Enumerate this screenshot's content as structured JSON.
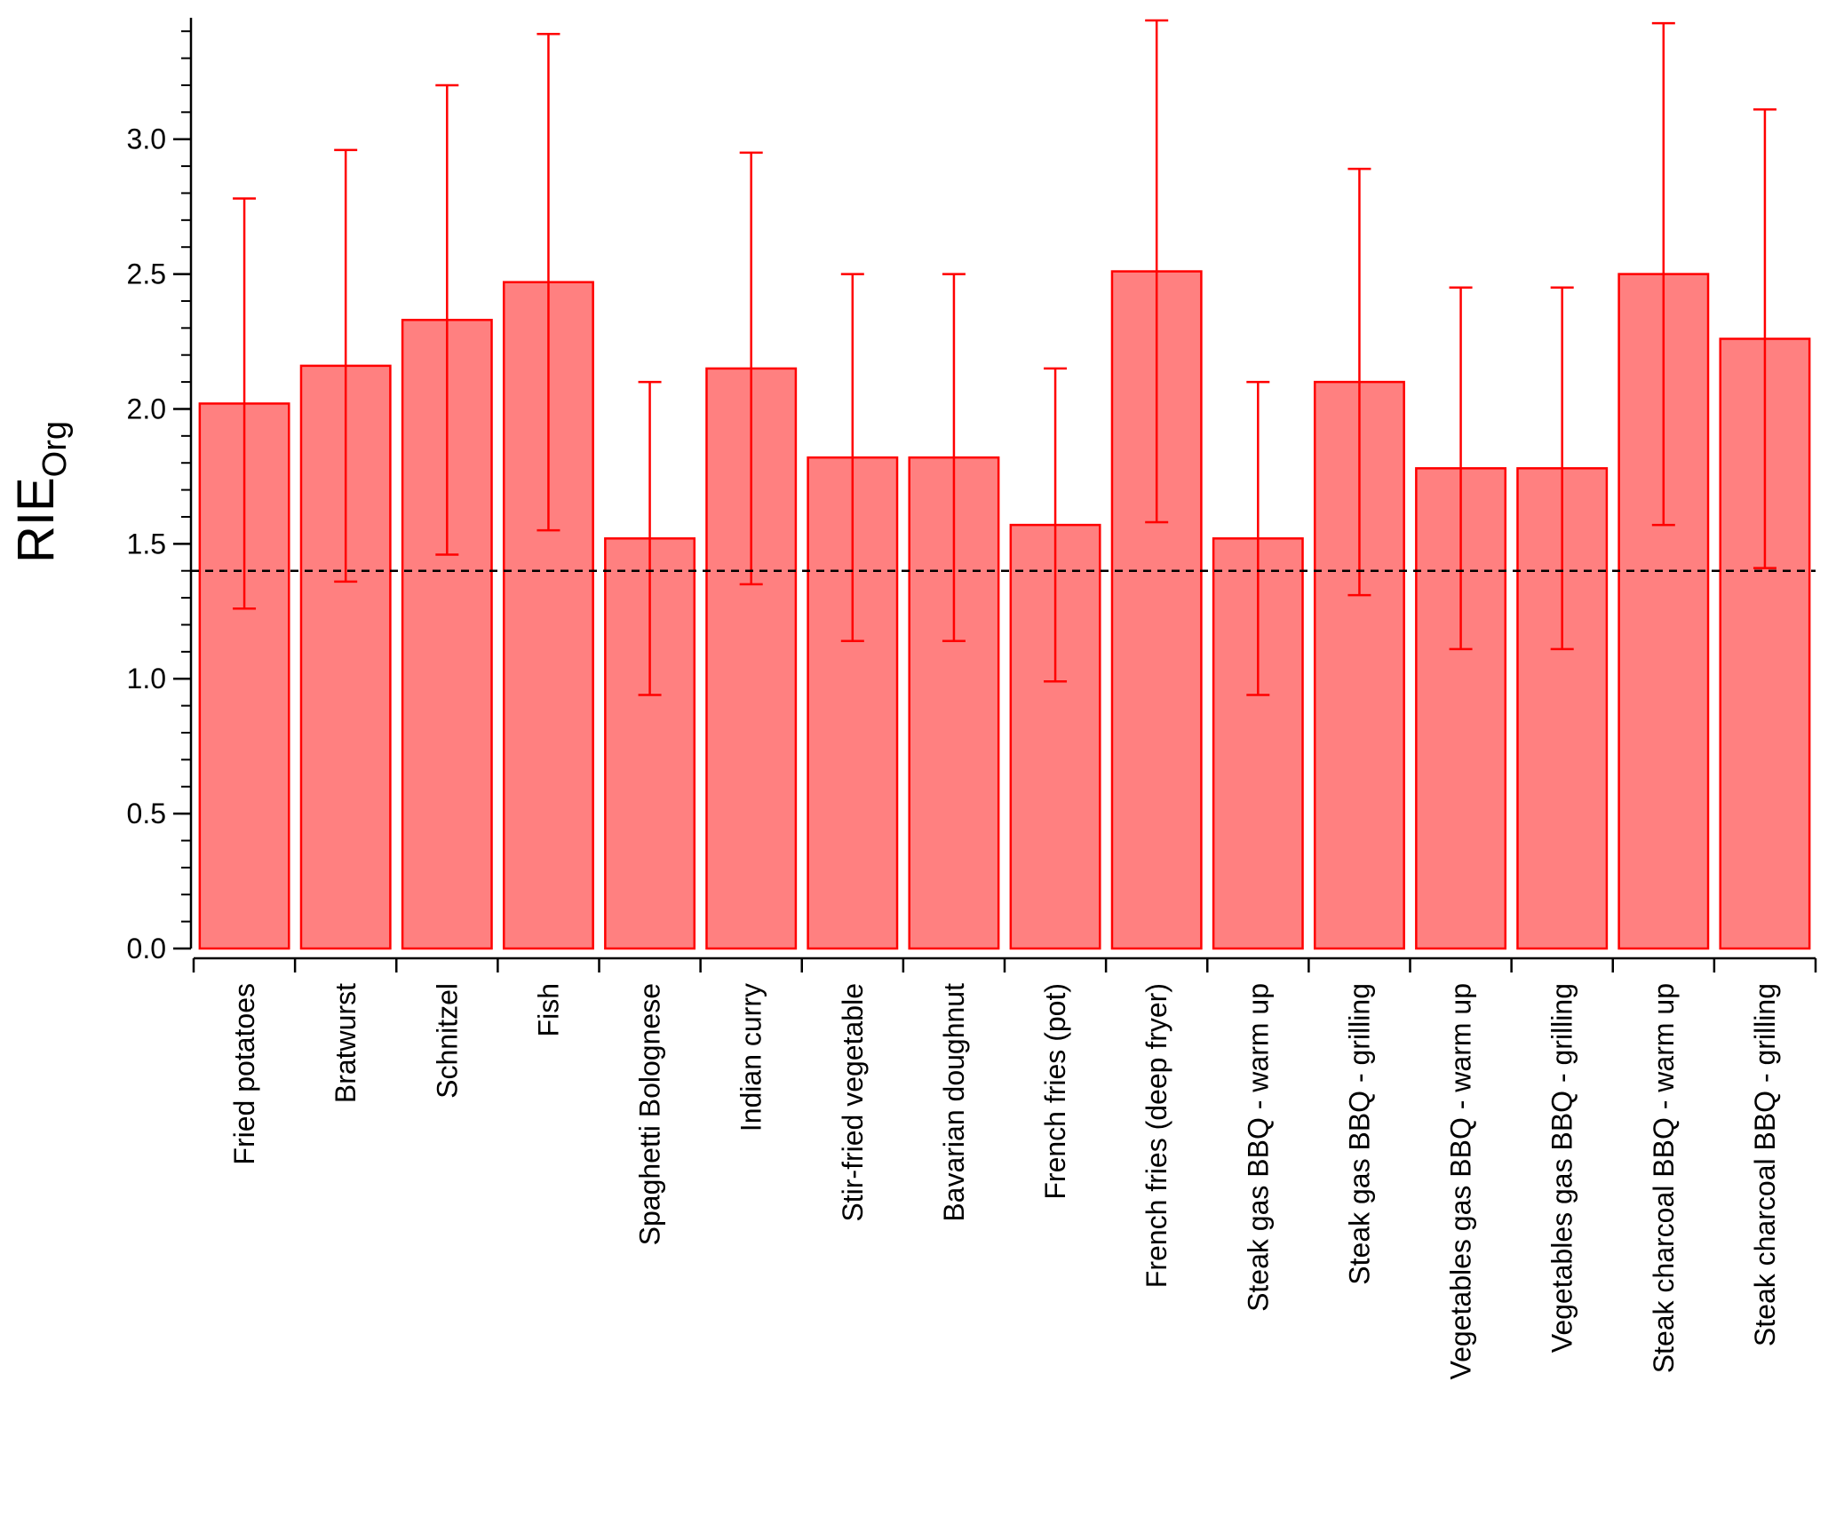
{
  "chart_data": {
    "type": "bar",
    "y_label": "RIE",
    "y_label_sub": "Org",
    "categories": [
      "Fried potatoes",
      "Bratwurst",
      "Schnitzel",
      "Fish",
      "Spaghetti Bolognese",
      "Indian curry",
      "Stir-fried vegetable",
      "Bavarian doughnut",
      "French fries (pot)",
      "French fries (deep fryer)",
      "Steak gas BBQ - warm up",
      "Steak gas BBQ - grilling",
      "Vegetables gas BBQ - warm up",
      "Vegetables gas BBQ - grilling",
      "Steak charcoal BBQ - warm up",
      "Steak charcoal BBQ - grilling"
    ],
    "values": [
      2.02,
      2.16,
      2.33,
      2.47,
      1.52,
      2.15,
      1.82,
      1.82,
      1.57,
      2.51,
      1.52,
      2.1,
      1.78,
      1.78,
      2.5,
      2.26
    ],
    "errors": [
      0.76,
      0.8,
      0.87,
      0.92,
      0.58,
      0.8,
      0.68,
      0.68,
      0.58,
      0.93,
      0.58,
      0.79,
      0.67,
      0.67,
      0.93,
      0.85
    ],
    "color": "#ff8080",
    "edge_color": "#ff0000",
    "error_color": "#ff0000",
    "reference_line": 1.4,
    "ylim": [
      0,
      3.45
    ],
    "yticks": [
      {
        "value": 0,
        "label": "0.0"
      },
      0.5,
      {
        "value": 1,
        "label": "1.0"
      },
      1.5,
      {
        "value": 2,
        "label": "2.0"
      },
      2.5,
      {
        "value": 3,
        "label": "3.0"
      }
    ]
  }
}
